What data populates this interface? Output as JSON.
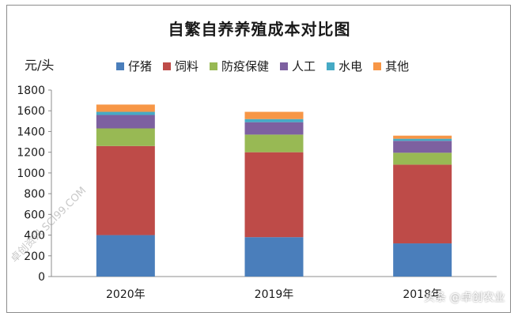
{
  "chart_data": {
    "type": "bar",
    "stacked": true,
    "title": "自繁自养养殖成本对比图",
    "ylabel": "元/头",
    "xlabel": "",
    "categories": [
      "2020年",
      "2019年",
      "2018年"
    ],
    "ylim": [
      0,
      1800
    ],
    "yticks": [
      0,
      200,
      400,
      600,
      800,
      1000,
      1200,
      1400,
      1600,
      1800
    ],
    "grid": false,
    "legend_position": "top",
    "series": [
      {
        "name": "仔猪",
        "color": "#4a7ebb",
        "values": [
          400,
          380,
          320
        ]
      },
      {
        "name": "饲料",
        "color": "#be4b48",
        "values": [
          860,
          820,
          760
        ]
      },
      {
        "name": "防疫保健",
        "color": "#98b954",
        "values": [
          170,
          170,
          115
        ]
      },
      {
        "name": "人工",
        "color": "#7d60a0",
        "values": [
          130,
          120,
          115
        ]
      },
      {
        "name": "水电",
        "color": "#46aac5",
        "values": [
          30,
          30,
          20
        ]
      },
      {
        "name": "其他",
        "color": "#f79646",
        "values": [
          70,
          70,
          30
        ]
      }
    ]
  },
  "watermark": {
    "left_text": "卓创资讯",
    "left_url": "SCI99.COM",
    "right_text": "头条 @卓创农业"
  }
}
